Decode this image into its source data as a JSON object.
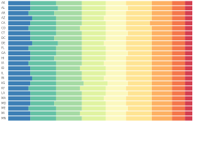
{
  "chart_data": {
    "type": "stacked_barh",
    "categories": [
      "AK",
      "AL",
      "AR",
      "AZ",
      "CA",
      "CO",
      "CT",
      "DC",
      "DE",
      "FL",
      "GA",
      "HI",
      "IA",
      "ID",
      "IL",
      "IN",
      "KS",
      "KY",
      "LA",
      "MA",
      "MD",
      "ME",
      "MI",
      "MN"
    ],
    "series": [
      {
        "color": "#3d7fb5",
        "values": [
          12,
          12,
          11,
          13,
          12,
          11,
          12,
          12,
          13,
          11,
          12,
          12,
          11,
          12,
          12,
          13,
          12,
          11,
          12,
          12,
          12,
          11,
          12,
          12
        ]
      },
      {
        "color": "#66c2a5",
        "values": [
          14,
          15,
          14,
          13,
          14,
          15,
          14,
          13,
          14,
          15,
          14,
          13,
          15,
          14,
          14,
          13,
          14,
          15,
          14,
          14,
          13,
          15,
          14,
          14
        ]
      },
      {
        "color": "#a6dba4",
        "values": [
          14,
          13,
          15,
          14,
          14,
          13,
          14,
          15,
          13,
          14,
          14,
          15,
          14,
          13,
          14,
          14,
          15,
          13,
          14,
          14,
          15,
          14,
          13,
          14
        ]
      },
      {
        "color": "#e0f3a1",
        "values": [
          13,
          13,
          13,
          12,
          13,
          14,
          13,
          13,
          12,
          13,
          13,
          13,
          12,
          14,
          13,
          12,
          13,
          14,
          13,
          12,
          13,
          13,
          14,
          13
        ]
      },
      {
        "color": "#fbf8be",
        "values": [
          11,
          12,
          11,
          12,
          11,
          11,
          12,
          11,
          12,
          11,
          12,
          11,
          12,
          11,
          11,
          12,
          11,
          11,
          12,
          12,
          11,
          12,
          11,
          11
        ]
      },
      {
        "color": "#fee493",
        "values": [
          14,
          13,
          14,
          14,
          13,
          14,
          13,
          14,
          14,
          14,
          13,
          14,
          14,
          14,
          14,
          14,
          13,
          14,
          13,
          14,
          14,
          13,
          14,
          14
        ]
      },
      {
        "color": "#fdb163",
        "values": [
          11,
          11,
          11,
          11,
          12,
          11,
          11,
          11,
          11,
          11,
          11,
          11,
          11,
          11,
          11,
          11,
          11,
          11,
          11,
          11,
          11,
          11,
          11,
          11
        ]
      },
      {
        "color": "#f4774a",
        "values": [
          7,
          7,
          7,
          7,
          7,
          7,
          7,
          7,
          7,
          7,
          7,
          7,
          7,
          7,
          7,
          7,
          7,
          7,
          7,
          7,
          7,
          7,
          7,
          7
        ]
      },
      {
        "color": "#d53e4f",
        "values": [
          4,
          4,
          4,
          4,
          4,
          4,
          4,
          4,
          4,
          4,
          4,
          4,
          4,
          4,
          4,
          4,
          4,
          4,
          4,
          4,
          4,
          4,
          4,
          4
        ]
      }
    ],
    "xlim": [
      0,
      100
    ]
  }
}
